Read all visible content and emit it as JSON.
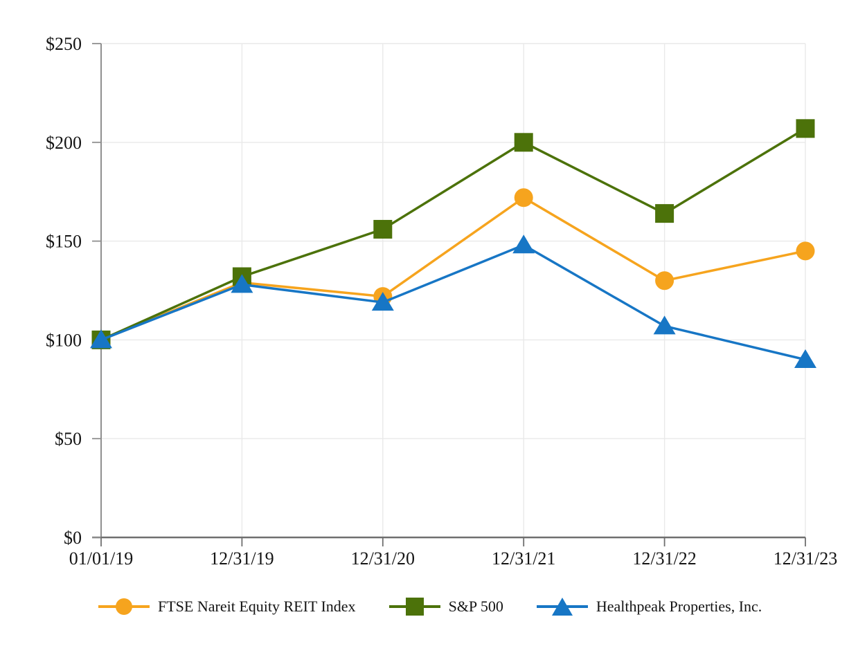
{
  "chart_data": {
    "type": "line",
    "title": "",
    "xlabel": "",
    "ylabel": "",
    "x_labels": [
      "01/01/19",
      "12/31/19",
      "12/31/20",
      "12/31/21",
      "12/31/22",
      "12/31/23"
    ],
    "y_tick_labels": [
      "$0",
      "$50",
      "$100",
      "$150",
      "$200",
      "$250"
    ],
    "y_tick_values": [
      0,
      50,
      100,
      150,
      200,
      250
    ],
    "ylim": [
      0,
      250
    ],
    "grid": true,
    "legend_position": "bottom",
    "series": [
      {
        "name": "FTSE Nareit Equity REIT Index",
        "marker": "circle",
        "color": "#F6A41E",
        "values": [
          100,
          129,
          122,
          172,
          130,
          145
        ]
      },
      {
        "name": "S&P 500",
        "marker": "square",
        "color": "#4C720A",
        "values": [
          100,
          132,
          156,
          200,
          164,
          207
        ]
      },
      {
        "name": "Healthpeak Properties, Inc.",
        "marker": "triangle",
        "color": "#1776C5",
        "values": [
          100,
          128,
          119,
          148,
          107,
          90
        ]
      }
    ]
  },
  "style_colors": {
    "gridline": "#E9E9E9",
    "y_axis": "#8F8F8F",
    "x_axis": "#6F6F6F",
    "label_text": "#141414"
  }
}
